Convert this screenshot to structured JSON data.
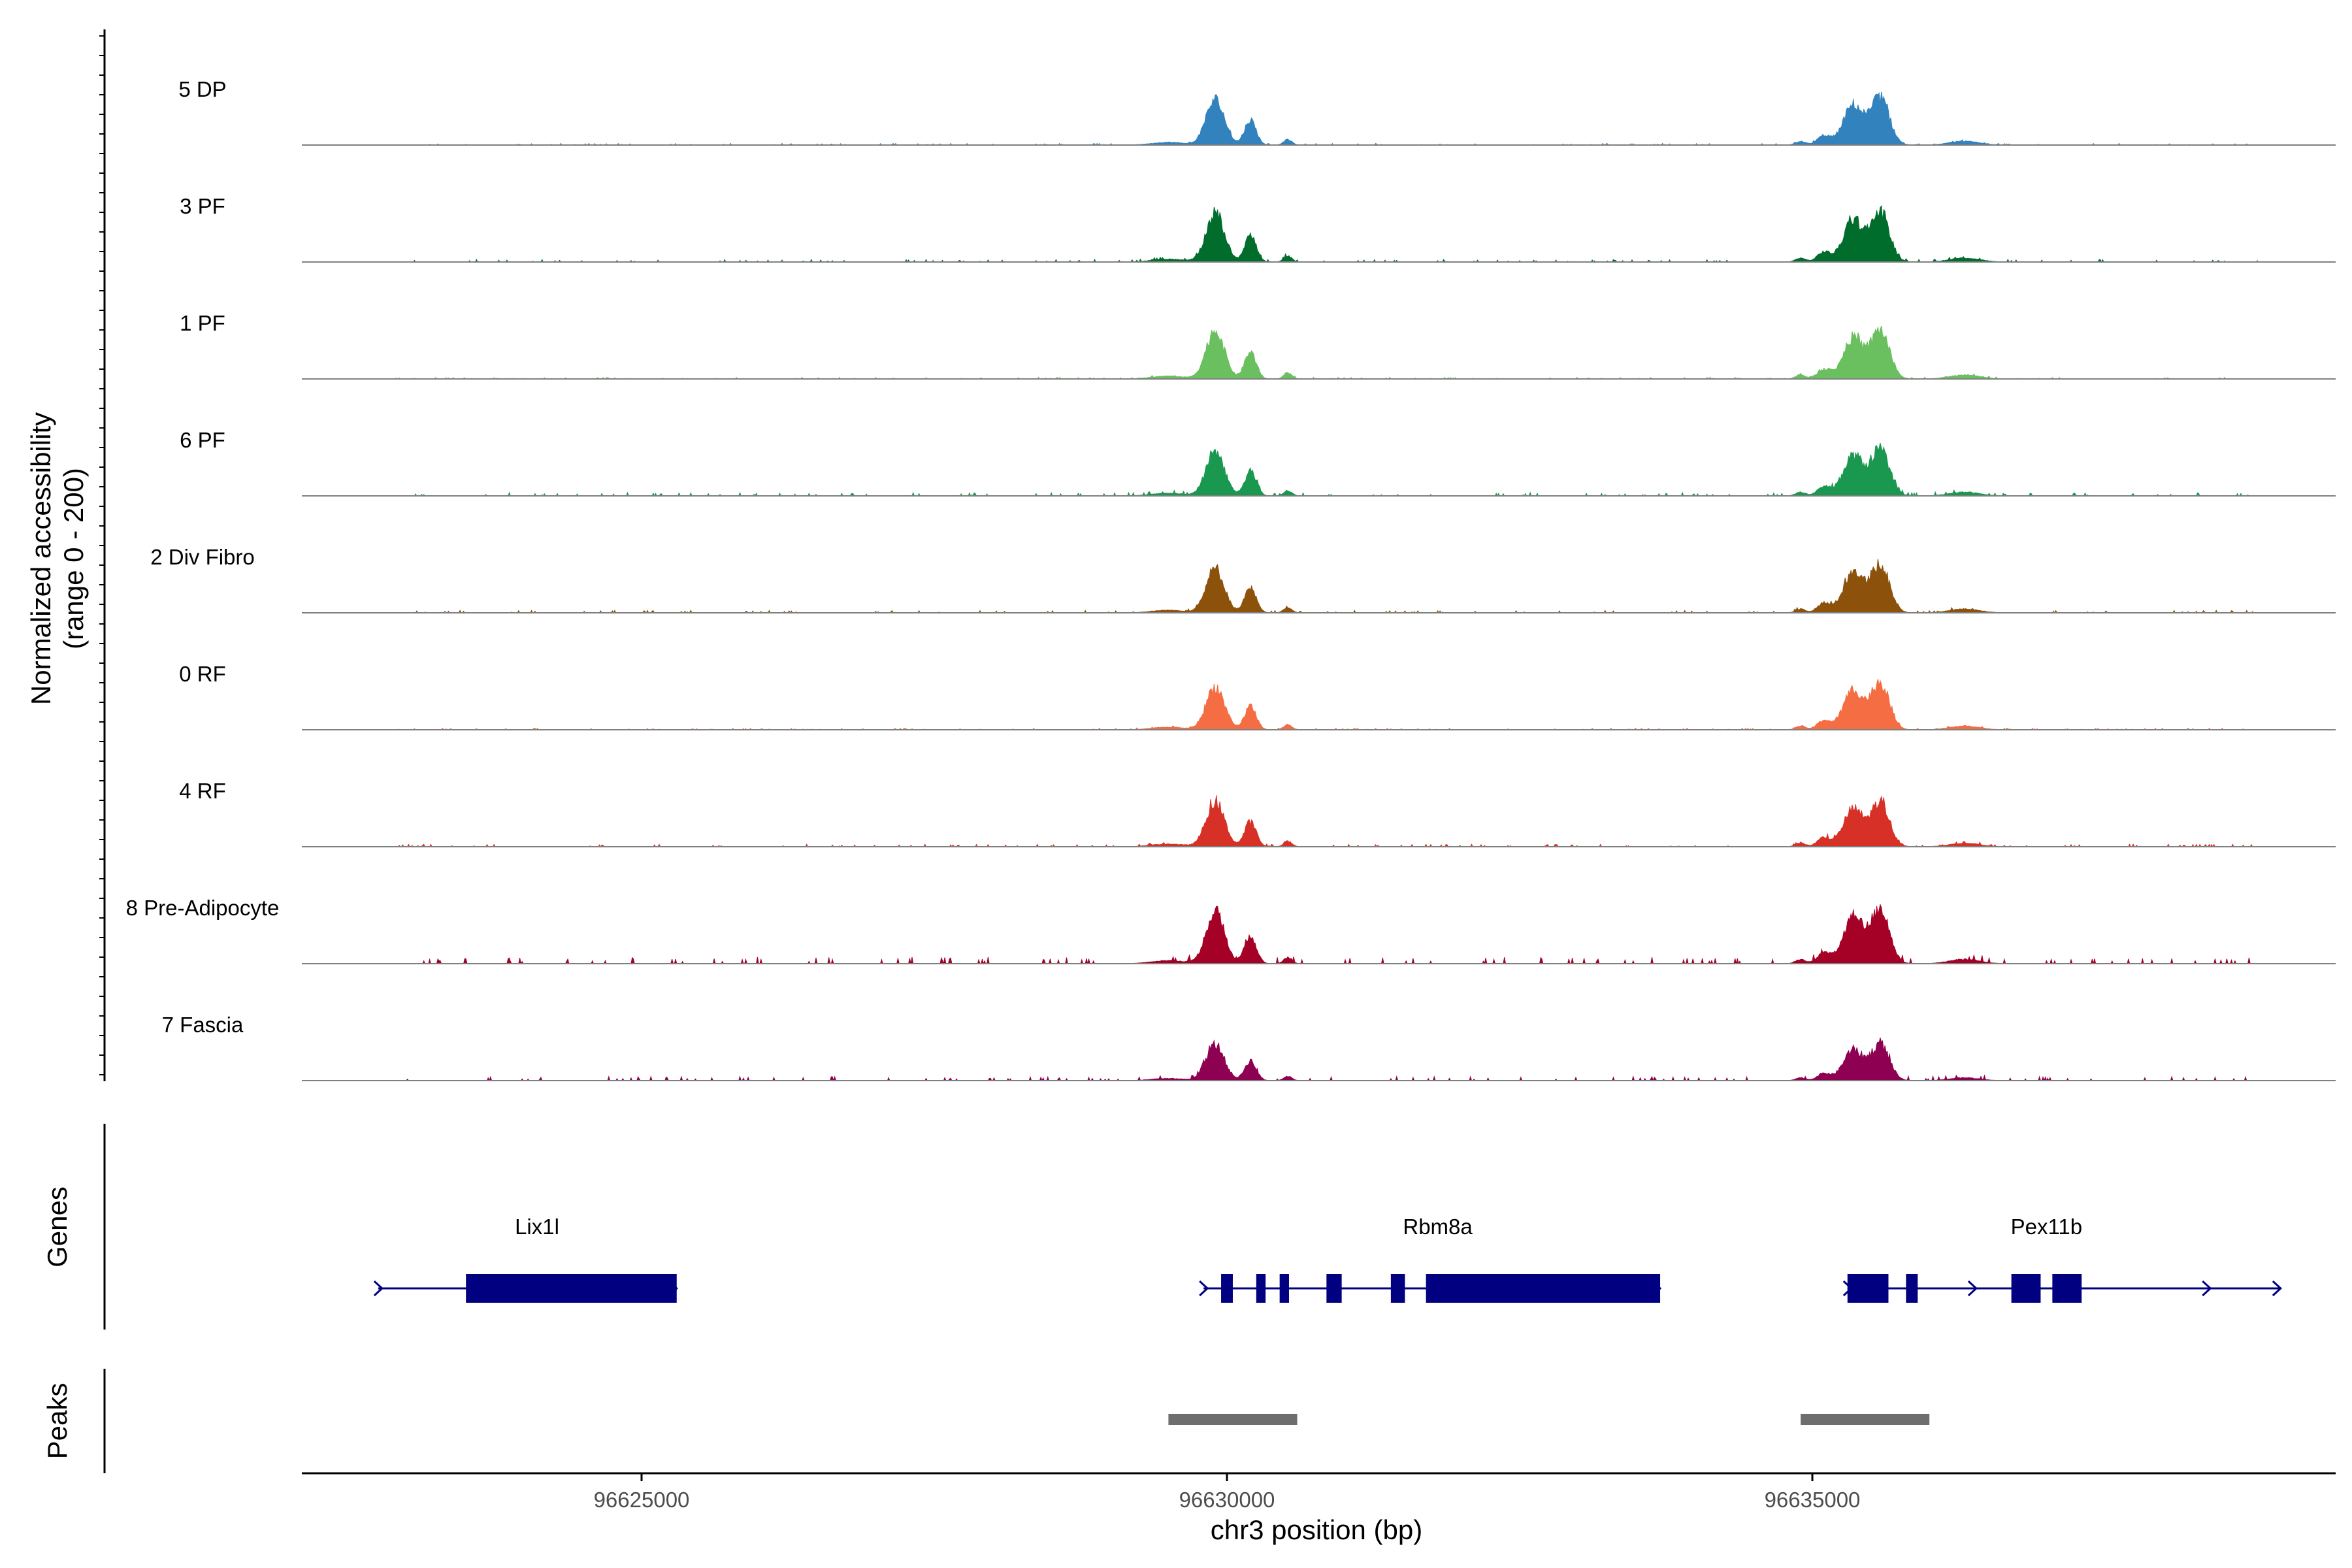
{
  "chart_data": {
    "type": "area",
    "title": "",
    "ylabel": "Normalized accessibility",
    "ylabel_range": "(range 0 - 200)",
    "y_range": [
      0,
      200
    ],
    "xlabel": "chr3 position (bp)",
    "x_range": [
      96622300,
      96639100
    ],
    "x_ticks": [
      96625000,
      96630000,
      96635000
    ],
    "x_tick_labels": [
      "96625000",
      "96630000",
      "96635000"
    ],
    "series": [
      {
        "name": "5 DP",
        "color": "#3182bd",
        "base_noise": 2,
        "p1": 82,
        "p2": 85
      },
      {
        "name": "3 PF",
        "color": "#006d2c",
        "base_noise": 3,
        "p1": 88,
        "p2": 90
      },
      {
        "name": "1 PF",
        "color": "#6abf5f",
        "base_noise": 2,
        "p1": 88,
        "p2": 88
      },
      {
        "name": "6 PF",
        "color": "#1a9850",
        "base_noise": 4,
        "p1": 80,
        "p2": 85
      },
      {
        "name": "2 Div Fibro",
        "color": "#8c510a",
        "base_noise": 3,
        "p1": 80,
        "p2": 88
      },
      {
        "name": "0 RF",
        "color": "#f46d43",
        "base_noise": 2,
        "p1": 78,
        "p2": 85
      },
      {
        "name": "4 RF",
        "color": "#d73027",
        "base_noise": 3,
        "p1": 82,
        "p2": 80
      },
      {
        "name": "8 Pre-Adipocyte",
        "color": "#a50026",
        "base_noise": 8,
        "p1": 95,
        "p2": 100
      },
      {
        "name": "7 Fascia",
        "color": "#8e0152",
        "base_noise": 5,
        "p1": 65,
        "p2": 65
      }
    ],
    "genes_track_label": "Genes",
    "peaks_track_label": "Peaks",
    "genes": [
      {
        "name": "Lix1l",
        "start": 96622750,
        "end": 96625300,
        "strand": "+",
        "exons": [
          [
            96623500,
            96625300
          ]
        ]
      },
      {
        "name": "Rbm8a",
        "start": 96629800,
        "end": 96633700,
        "strand": "+",
        "exons": [
          [
            96629950,
            96630050
          ],
          [
            96630250,
            96630330
          ],
          [
            96630450,
            96630530
          ],
          [
            96630850,
            96630980
          ],
          [
            96631400,
            96631520
          ],
          [
            96631700,
            96633700
          ]
        ]
      },
      {
        "name": "Pex11b",
        "start": 96635300,
        "end": 96639000,
        "strand": "+",
        "exons": [
          [
            96635300,
            96635650
          ],
          [
            96635800,
            96635900
          ],
          [
            96636700,
            96636950
          ],
          [
            96637050,
            96637300
          ]
        ]
      }
    ],
    "peaks": [
      [
        96629500,
        96630600
      ],
      [
        96634900,
        96636000
      ]
    ]
  },
  "colors": {
    "gene": "#000080",
    "peak": "#6e6e6e",
    "baseline": "#808080",
    "axis": "#000000"
  }
}
